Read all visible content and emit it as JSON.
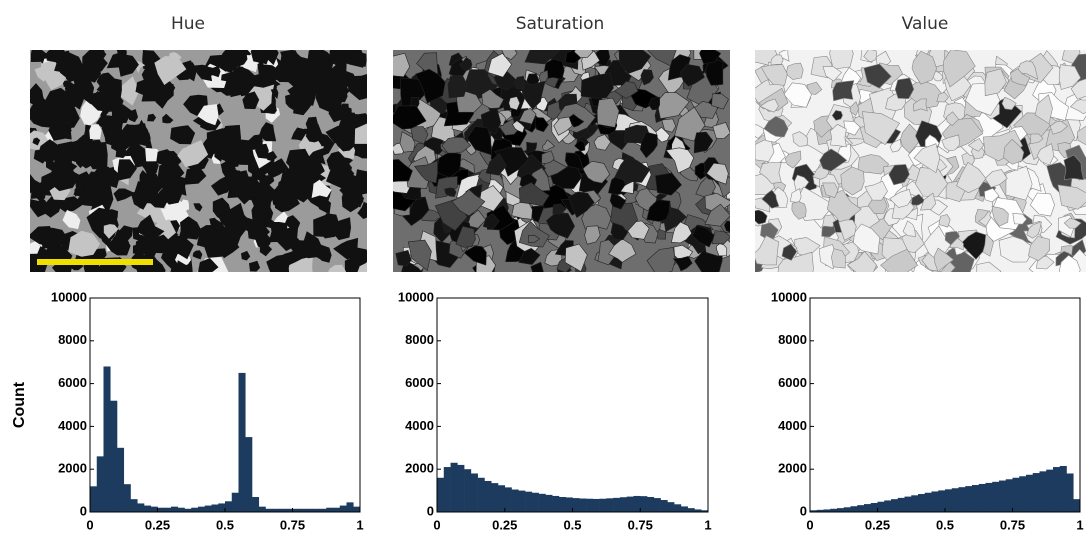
{
  "chart_data": [
    {
      "type": "histogram",
      "title": "Hue",
      "ylabel": "Count",
      "color": "#1c3b5e",
      "bins": [
        0,
        0.025,
        0.05,
        0.075,
        0.1,
        0.125,
        0.15,
        0.175,
        0.2,
        0.225,
        0.25,
        0.275,
        0.3,
        0.325,
        0.35,
        0.375,
        0.4,
        0.425,
        0.45,
        0.475,
        0.5,
        0.525,
        0.55,
        0.575,
        0.6,
        0.625,
        0.65,
        0.675,
        0.7,
        0.725,
        0.75,
        0.775,
        0.8,
        0.825,
        0.85,
        0.875,
        0.9,
        0.925,
        0.95,
        0.975,
        1
      ],
      "values": [
        1200,
        2600,
        6800,
        5200,
        3000,
        1300,
        600,
        400,
        300,
        250,
        200,
        200,
        250,
        200,
        150,
        200,
        250,
        300,
        350,
        400,
        500,
        900,
        6500,
        3500,
        700,
        250,
        150,
        150,
        150,
        150,
        150,
        150,
        150,
        150,
        150,
        200,
        200,
        300,
        450,
        250
      ],
      "xlim": [
        0,
        1
      ],
      "ylim": [
        0,
        10000
      ],
      "xticks": [
        0,
        0.25,
        0.5,
        0.75,
        1
      ],
      "yticks": [
        0,
        2000,
        4000,
        6000,
        8000,
        10000
      ]
    },
    {
      "type": "histogram",
      "title": "Saturation",
      "color": "#1c3b5e",
      "bins": [
        0,
        0.025,
        0.05,
        0.075,
        0.1,
        0.125,
        0.15,
        0.175,
        0.2,
        0.225,
        0.25,
        0.275,
        0.3,
        0.325,
        0.35,
        0.375,
        0.4,
        0.425,
        0.45,
        0.475,
        0.5,
        0.525,
        0.55,
        0.575,
        0.6,
        0.625,
        0.65,
        0.675,
        0.7,
        0.725,
        0.75,
        0.775,
        0.8,
        0.825,
        0.85,
        0.875,
        0.9,
        0.925,
        0.95,
        0.975,
        1
      ],
      "values": [
        1600,
        2100,
        2300,
        2200,
        2000,
        1800,
        1600,
        1450,
        1350,
        1250,
        1150,
        1050,
        1000,
        950,
        900,
        850,
        800,
        750,
        700,
        680,
        650,
        630,
        620,
        610,
        620,
        640,
        660,
        690,
        720,
        750,
        740,
        700,
        650,
        560,
        460,
        360,
        260,
        180,
        120,
        80
      ],
      "xlim": [
        0,
        1
      ],
      "ylim": [
        0,
        10000
      ],
      "xticks": [
        0,
        0.25,
        0.5,
        0.75,
        1
      ],
      "yticks": [
        0,
        2000,
        4000,
        6000,
        8000,
        10000
      ]
    },
    {
      "type": "histogram",
      "title": "Value",
      "color": "#1c3b5e",
      "bins": [
        0,
        0.025,
        0.05,
        0.075,
        0.1,
        0.125,
        0.15,
        0.175,
        0.2,
        0.225,
        0.25,
        0.275,
        0.3,
        0.325,
        0.35,
        0.375,
        0.4,
        0.425,
        0.45,
        0.475,
        0.5,
        0.525,
        0.55,
        0.575,
        0.6,
        0.625,
        0.65,
        0.675,
        0.7,
        0.725,
        0.75,
        0.775,
        0.8,
        0.825,
        0.85,
        0.875,
        0.9,
        0.925,
        0.95,
        0.975,
        1
      ],
      "values": [
        80,
        100,
        120,
        150,
        180,
        220,
        270,
        320,
        370,
        420,
        480,
        540,
        600,
        660,
        720,
        780,
        840,
        900,
        960,
        1010,
        1060,
        1110,
        1160,
        1210,
        1260,
        1310,
        1360,
        1410,
        1470,
        1530,
        1600,
        1670,
        1740,
        1820,
        1900,
        1980,
        2100,
        2150,
        1800,
        600
      ],
      "xlim": [
        0,
        1
      ],
      "ylim": [
        0,
        10000
      ],
      "xticks": [
        0,
        0.25,
        0.5,
        0.75,
        1
      ],
      "yticks": [
        0,
        2000,
        4000,
        6000,
        8000,
        10000
      ]
    }
  ]
}
